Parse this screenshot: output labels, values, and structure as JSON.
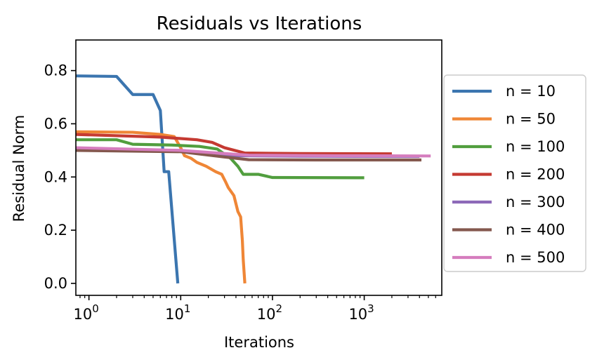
{
  "chart_data": {
    "type": "line",
    "title": "Residuals vs Iterations",
    "xlabel": "Iterations",
    "ylabel": "Residual Norm",
    "xscale": "log",
    "xlim": [
      0.72,
      7000
    ],
    "ylim": [
      -0.045,
      0.915
    ],
    "grid": false,
    "legend_position": "outside-right",
    "x_ticks": [
      {
        "value": 1,
        "base": "10",
        "exp": "0"
      },
      {
        "value": 10,
        "base": "10",
        "exp": "1"
      },
      {
        "value": 100,
        "base": "10",
        "exp": "2"
      },
      {
        "value": 1000,
        "base": "10",
        "exp": "3"
      }
    ],
    "y_ticks": [
      {
        "value": 0.0,
        "label": "0.0"
      },
      {
        "value": 0.2,
        "label": "0.2"
      },
      {
        "value": 0.4,
        "label": "0.4"
      },
      {
        "value": 0.6,
        "label": "0.6"
      },
      {
        "value": 0.8,
        "label": "0.8"
      }
    ],
    "series": [
      {
        "name": "n = 10",
        "color": "#3b75af",
        "points": [
          [
            0.72,
            0.78
          ],
          [
            2,
            0.778
          ],
          [
            3,
            0.71
          ],
          [
            5,
            0.71
          ],
          [
            6,
            0.65
          ],
          [
            6.6,
            0.42
          ],
          [
            7.4,
            0.42
          ],
          [
            9.3,
            0.0
          ]
        ]
      },
      {
        "name": "n = 50",
        "color": "#ef8636",
        "points": [
          [
            0.72,
            0.57
          ],
          [
            3,
            0.568
          ],
          [
            6,
            0.56
          ],
          [
            8.5,
            0.552
          ],
          [
            10,
            0.51
          ],
          [
            11,
            0.48
          ],
          [
            13,
            0.47
          ],
          [
            15,
            0.455
          ],
          [
            19,
            0.44
          ],
          [
            24,
            0.42
          ],
          [
            28,
            0.41
          ],
          [
            31,
            0.38
          ],
          [
            33,
            0.36
          ],
          [
            38,
            0.33
          ],
          [
            42,
            0.27
          ],
          [
            45,
            0.25
          ],
          [
            47,
            0.16
          ],
          [
            48,
            0.09
          ],
          [
            50,
            0.0
          ]
        ]
      },
      {
        "name": "n = 100",
        "color": "#519e3e",
        "points": [
          [
            0.72,
            0.54
          ],
          [
            2,
            0.54
          ],
          [
            3,
            0.523
          ],
          [
            8,
            0.52
          ],
          [
            16,
            0.515
          ],
          [
            25,
            0.505
          ],
          [
            35,
            0.47
          ],
          [
            42,
            0.44
          ],
          [
            48,
            0.41
          ],
          [
            70,
            0.41
          ],
          [
            100,
            0.398
          ],
          [
            1000,
            0.397
          ]
        ]
      },
      {
        "name": "n = 200",
        "color": "#c53a32",
        "points": [
          [
            0.72,
            0.56
          ],
          [
            6,
            0.55
          ],
          [
            15,
            0.54
          ],
          [
            22,
            0.53
          ],
          [
            30,
            0.51
          ],
          [
            50,
            0.49
          ],
          [
            200,
            0.488
          ],
          [
            2000,
            0.487
          ]
        ]
      },
      {
        "name": "n = 300",
        "color": "#8d69b8",
        "points": [
          [
            0.72,
            0.505
          ],
          [
            10,
            0.5
          ],
          [
            20,
            0.49
          ],
          [
            40,
            0.48
          ],
          [
            200,
            0.478
          ],
          [
            4000,
            0.477
          ]
        ]
      },
      {
        "name": "n = 400",
        "color": "#84584e",
        "points": [
          [
            0.72,
            0.5
          ],
          [
            10,
            0.495
          ],
          [
            30,
            0.475
          ],
          [
            55,
            0.465
          ],
          [
            300,
            0.464
          ],
          [
            4200,
            0.464
          ]
        ]
      },
      {
        "name": "n = 500",
        "color": "#d57dbe",
        "points": [
          [
            0.72,
            0.51
          ],
          [
            10,
            0.5
          ],
          [
            25,
            0.49
          ],
          [
            55,
            0.482
          ],
          [
            500,
            0.48
          ],
          [
            5300,
            0.479
          ]
        ]
      }
    ]
  }
}
